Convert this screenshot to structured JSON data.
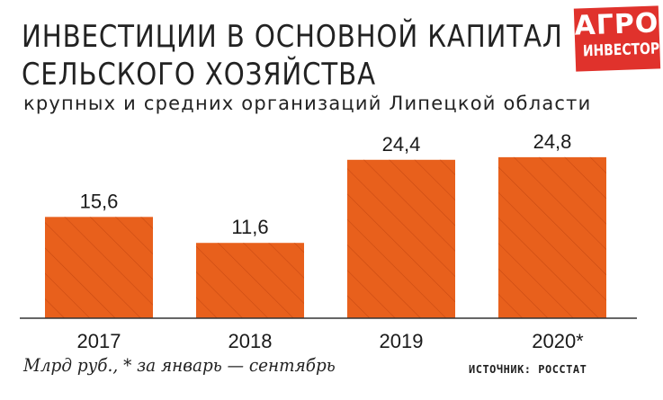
{
  "header": {
    "title_line1": "ИНВЕСТИЦИИ В ОСНОВНОЙ КАПИТАЛ",
    "title_line2": "СЕЛЬСКОГО ХОЗЯЙСТВА",
    "subtitle": "крупных и средних организаций Липецкой области"
  },
  "logo": {
    "line1": "АГРО",
    "line2": "ИНВЕСТОР"
  },
  "colors": {
    "bar": "#e8601c",
    "bar_hatch": "#c94a12",
    "axis": "#333333"
  },
  "chart_data": {
    "type": "bar",
    "categories": [
      "2017",
      "2018",
      "2019",
      "2020*"
    ],
    "values": [
      15.6,
      11.6,
      24.4,
      24.8
    ],
    "data_labels": [
      "15,6",
      "11,6",
      "24,4",
      "24,8"
    ],
    "ylim": [
      0,
      27
    ],
    "grid": false,
    "legend": "none"
  },
  "footer": {
    "note": "Млрд руб., * за январь — сентябрь",
    "source": "ИСТОЧНИК: РОССТАТ"
  }
}
